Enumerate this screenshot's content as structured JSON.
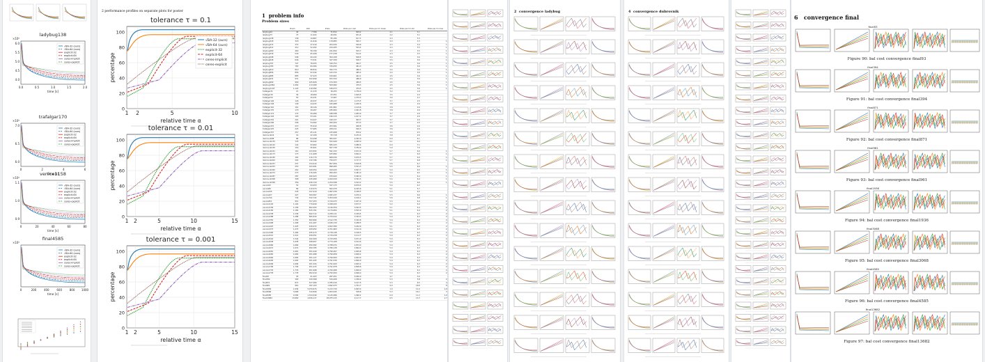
{
  "page1": {
    "plots": [
      {
        "title": "ladybug138",
        "exp_label": "×10⁶",
        "y_ticks": [
          "6.0",
          "5.5",
          "5.0",
          "4.5",
          "4.0"
        ],
        "x_ticks": [
          "0.0",
          "0.5",
          "1.0",
          "1.5",
          "2.0"
        ],
        "xlabel": "time [s]"
      },
      {
        "title": "trafalgar170",
        "exp_label": "×10⁶",
        "y_ticks": [
          "7.0",
          "6.5",
          "6.0"
        ],
        "x_ticks": [
          "0",
          "2",
          "4",
          "6"
        ],
        "xlabel": "time [s]"
      },
      {
        "title": "venice1158",
        "exp_label": "×10⁶",
        "y_ticks": [
          "1.1",
          "1.0",
          "0.9"
        ],
        "x_ticks": [
          "0",
          "20",
          "40",
          "60",
          "80"
        ],
        "xlabel": "time [s]"
      },
      {
        "title": "final4585",
        "exp_label": "×10⁶",
        "y_ticks": [],
        "x_ticks": [
          "0",
          "200",
          "400",
          "600",
          "800",
          "1000"
        ],
        "xlabel": "time [s]"
      }
    ],
    "legend": [
      "√BA-32 (ours)",
      "√BA-64 (ours)",
      "explicit-32",
      "explicit-64",
      "ceres-implicit",
      "ceres-explicit"
    ],
    "legend_colors": [
      "#1f77b4",
      "#1f77b4",
      "#d62728",
      "#d62728",
      "#9467bd",
      "#2ca02c"
    ]
  },
  "page2": {
    "section": "2   performance profiles on separate plots for poster",
    "charts": [
      {
        "title": "tolerance τ = 0.1",
        "x_ticks": [
          "1",
          "2",
          "5",
          "10"
        ],
        "xlabel": "relative time α",
        "ylabel": "percentage",
        "y_ticks": [
          "0",
          "20",
          "40",
          "60",
          "80",
          "100"
        ]
      },
      {
        "title": "tolerance τ = 0.01",
        "x_ticks": [
          "1",
          "2",
          "5",
          "10",
          "15"
        ],
        "xlabel": "relative time α",
        "ylabel": "percentage",
        "y_ticks": [
          "0",
          "20",
          "40",
          "60",
          "80",
          "100"
        ]
      },
      {
        "title": "tolerance τ = 0.001",
        "x_ticks": [
          "1",
          "2",
          "5",
          "10",
          "15"
        ],
        "xlabel": "relative time α",
        "ylabel": "percentage",
        "y_ticks": [
          "0",
          "20",
          "40",
          "60",
          "80",
          "100"
        ]
      }
    ],
    "legend": [
      "√BA-32 (ours)",
      "√BA-64 (ours)",
      "explicit-32",
      "explicit-64",
      "ceres-implicit",
      "ceres-explicit"
    ]
  },
  "page3": {
    "section_num": "1",
    "section": "problem info",
    "subsection": "Problem sizes",
    "columns": [
      "",
      "#cam",
      "#lm",
      "#obs",
      "#obs per cam",
      "#obs per lm mean",
      "#obs per lm std",
      "#obs per lm max"
    ],
    "rows": [
      [
        "ladybug49",
        "49",
        "7,766",
        "31,812",
        "649.2",
        "4.1",
        "3.1",
        "46"
      ],
      [
        "ladybug73",
        "73",
        "11,022",
        "46,091",
        "631.4",
        "4.2",
        "3.1",
        "48"
      ],
      [
        "ladybug138",
        "138",
        "19,867",
        "85,184",
        "617.3",
        "4.3",
        "3.3",
        "57"
      ],
      [
        "ladybug318",
        "318",
        "41,616",
        "179,883",
        "565.7",
        "4.3",
        "3.3",
        "107"
      ],
      [
        "ladybug372",
        "372",
        "47,410",
        "204,434",
        "549.6",
        "4.3",
        "3.4",
        "113"
      ],
      [
        "ladybug412",
        "412",
        "52,202",
        "224,205",
        "544.2",
        "4.3",
        "3.5",
        "132"
      ],
      [
        "ladybug460",
        "460",
        "56,799",
        "241,842",
        "525.7",
        "4.3",
        "3.5",
        "132"
      ],
      [
        "ladybug539",
        "539",
        "65,208",
        "277,238",
        "514.4",
        "4.3",
        "3.5",
        "132"
      ],
      [
        "ladybug598",
        "598",
        "69,193",
        "304,108",
        "508.5",
        "4.4",
        "3.6",
        "132"
      ],
      [
        "ladybug646",
        "646",
        "73,541",
        "327,299",
        "506.7",
        "4.5",
        "3.6",
        "132"
      ],
      [
        "ladybug707",
        "707",
        "78,455",
        "349,753",
        "494.7",
        "4.5",
        "3.6",
        "132"
      ],
      [
        "ladybug783",
        "783",
        "84,384",
        "376,835",
        "481.3",
        "4.5",
        "3.6",
        "132"
      ],
      [
        "ladybug810",
        "810",
        "88,814",
        "393,774",
        "486.1",
        "4.4",
        "3.6",
        "132"
      ],
      [
        "ladybug856",
        "856",
        "93,344",
        "415,315",
        "485.2",
        "4.4",
        "3.6",
        "132"
      ],
      [
        "ladybug885",
        "885",
        "97,423",
        "434,601",
        "491.1",
        "4.5",
        "3.6",
        "132"
      ],
      [
        "ladybug931",
        "931",
        "102,699",
        "453,324",
        "486.9",
        "4.4",
        "3.6",
        "132"
      ],
      [
        "ladybug969",
        "969",
        "105,826",
        "474,300",
        "489.5",
        "4.5",
        "3.6",
        "132"
      ],
      [
        "ladybug1064",
        "1,064",
        "113,289",
        "509,982",
        "479.3",
        "4.5",
        "3.6",
        "132"
      ],
      [
        "ladybug1118",
        "1,118",
        "118,384",
        "536,073",
        "479.5",
        "4.5",
        "3.6",
        "132"
      ],
      [
        "trafalgar21",
        "21",
        "11,315",
        "36,455",
        "1,736.0",
        "3.2",
        "1.6",
        "15"
      ],
      [
        "trafalgar39",
        "39",
        "18,060",
        "63,551",
        "1,629.5",
        "3.5",
        "2.0",
        "20"
      ],
      [
        "trafalgar50",
        "50",
        "20,431",
        "73,967",
        "1,479.3",
        "3.6",
        "2.2",
        "21"
      ],
      [
        "trafalgar126",
        "126",
        "40,037",
        "148,117",
        "1,175.5",
        "3.7",
        "2.5",
        "29"
      ],
      [
        "trafalgar138",
        "138",
        "44,033",
        "165,688",
        "1,200.6",
        "3.8",
        "2.6",
        "32"
      ],
      [
        "trafalgar161",
        "161",
        "48,126",
        "181,861",
        "1,129.6",
        "3.8",
        "2.6",
        "40"
      ],
      [
        "trafalgar170",
        "170",
        "49,267",
        "185,604",
        "1,091.8",
        "3.8",
        "2.6",
        "41"
      ],
      [
        "trafalgar174",
        "174",
        "50,489",
        "188,598",
        "1,083.9",
        "3.7",
        "2.6",
        "41"
      ],
      [
        "trafalgar193",
        "193",
        "53,101",
        "196,315",
        "1,017.2",
        "3.7",
        "2.6",
        "42"
      ],
      [
        "trafalgar201",
        "201",
        "54,427",
        "199,727",
        "993.7",
        "3.7",
        "2.6",
        "42"
      ],
      [
        "trafalgar206",
        "206",
        "54,562",
        "200,504",
        "973.3",
        "3.7",
        "2.6",
        "42"
      ],
      [
        "trafalgar215",
        "215",
        "55,910",
        "203,991",
        "948.8",
        "3.6",
        "2.6",
        "42"
      ],
      [
        "trafalgar225",
        "225",
        "57,665",
        "208,411",
        "926.3",
        "3.6",
        "2.6",
        "42"
      ],
      [
        "trafalgar257",
        "257",
        "65,131",
        "225,698",
        "878.2",
        "3.5",
        "2.5",
        "44"
      ],
      [
        "dubrovnik16",
        "16",
        "22,106",
        "83,718",
        "5,232.4",
        "3.8",
        "2.6",
        "14"
      ],
      [
        "dubrovnik88",
        "88",
        "64,298",
        "383,937",
        "4,362.9",
        "6.0",
        "6.1",
        "60"
      ],
      [
        "dubrovnik135",
        "135",
        "90,642",
        "552,949",
        "4,095.9",
        "6.1",
        "6.9",
        "89"
      ],
      [
        "dubrovnik142",
        "142",
        "93,602",
        "565,223",
        "3,980.4",
        "6.0",
        "7.1",
        "94"
      ],
      [
        "dubrovnik150",
        "150",
        "95,821",
        "567,738",
        "3,784.9",
        "5.9",
        "7.0",
        "94"
      ],
      [
        "dubrovnik161",
        "161",
        "103,832",
        "591,343",
        "3,672.9",
        "5.7",
        "6.9",
        "102"
      ],
      [
        "dubrovnik173",
        "173",
        "111,908",
        "633,894",
        "3,664.1",
        "5.7",
        "6.9",
        "102"
      ],
      [
        "dubrovnik182",
        "182",
        "116,770",
        "668,030",
        "3,670.5",
        "5.7",
        "6.9",
        "102"
      ],
      [
        "dubrovnik202",
        "202",
        "132,796",
        "750,977",
        "3,717.7",
        "5.7",
        "6.8",
        "102"
      ],
      [
        "dubrovnik237",
        "237",
        "154,414",
        "857,656",
        "3,618.8",
        "5.6",
        "6.7",
        "98"
      ],
      [
        "dubrovnik253",
        "253",
        "163,691",
        "898,485",
        "3,551.3",
        "5.5",
        "6.6",
        "102"
      ],
      [
        "dubrovnik262",
        "262",
        "169,354",
        "919,020",
        "3,507.7",
        "5.4",
        "6.5",
        "106"
      ],
      [
        "dubrovnik273",
        "273",
        "176,305",
        "950,303",
        "3,481.0",
        "5.4",
        "6.5",
        "106"
      ],
      [
        "dubrovnik287",
        "287",
        "182,023",
        "970,624",
        "3,382.0",
        "5.3",
        "6.4",
        "122"
      ],
      [
        "dubrovnik308",
        "308",
        "195,089",
        "1,044,529",
        "3,391.3",
        "5.4",
        "6.4",
        "122"
      ],
      [
        "dubrovnik356",
        "356",
        "226,729",
        "1,254,598",
        "3,524.2",
        "5.5",
        "6.6",
        "122"
      ],
      [
        "venice52",
        "52",
        "64,053",
        "347,173",
        "6,676.4",
        "5.4",
        "6.3",
        "50"
      ],
      [
        "venice89",
        "89",
        "110,973",
        "562,976",
        "6,325.6",
        "5.1",
        "5.7",
        "62"
      ],
      [
        "venice245",
        "245",
        "197,919",
        "1,087,436",
        "4,438.5",
        "5.5",
        "6.5",
        "93"
      ],
      [
        "venice427",
        "427",
        "309,567",
        "1,695,237",
        "3,970.1",
        "5.5",
        "6.6",
        "132"
      ],
      [
        "venice744",
        "744",
        "542,742",
        "3,054,949",
        "4,106.1",
        "5.6",
        "6.8",
        "185"
      ],
      [
        "venice951",
        "951",
        "707,453",
        "3,744,975",
        "3,937.9",
        "5.3",
        "6.4",
        "211"
      ],
      [
        "venice1102",
        "1,102",
        "779,640",
        "4,048,424",
        "3,673.7",
        "5.2",
        "6.4",
        "222"
      ],
      [
        "venice1158",
        "1,158",
        "802,093",
        "4,126,550",
        "3,563.5",
        "5.1",
        "6.4",
        "222"
      ],
      [
        "venice1184",
        "1,184",
        "815,761",
        "4,174,654",
        "3,525.9",
        "5.1",
        "6.4",
        "224"
      ],
      [
        "venice1238",
        "1,238",
        "842,712",
        "4,258,111",
        "3,439.5",
        "5.1",
        "6.3",
        "224"
      ],
      [
        "venice1288",
        "1,288",
        "865,630",
        "4,370,614",
        "3,393.3",
        "5.0",
        "6.3",
        "226"
      ],
      [
        "venice1350",
        "1,350",
        "893,894",
        "4,512,735",
        "3,342.8",
        "5.0",
        "6.3",
        "226"
      ],
      [
        "venice1408",
        "1,408",
        "911,407",
        "4,630,139",
        "3,288.5",
        "5.1",
        "6.3",
        "226"
      ],
      [
        "venice1425",
        "1,425",
        "916,072",
        "4,652,589",
        "3,264.9",
        "5.1",
        "6.3",
        "226"
      ],
      [
        "venice1473",
        "1,473",
        "929,952",
        "4,701,663",
        "3,191.9",
        "5.1",
        "6.3",
        "226"
      ],
      [
        "venice1490",
        "1,490",
        "935,273",
        "4,718,148",
        "3,166.5",
        "5.0",
        "6.3",
        "226"
      ],
      [
        "venice1521",
        "1,521",
        "939,551",
        "4,734,438",
        "3,112.7",
        "5.0",
        "6.3",
        "226"
      ],
      [
        "venice1544",
        "1,544",
        "942,409",
        "4,743,056",
        "3,071.9",
        "5.0",
        "6.3",
        "226"
      ],
      [
        "venice1638",
        "1,638",
        "948,657",
        "4,774,168",
        "2,914.6",
        "5.0",
        "6.3",
        "226"
      ],
      [
        "venice1666",
        "1,666",
        "950,582",
        "4,788,074",
        "2,874.0",
        "5.0",
        "6.3",
        "226"
      ],
      [
        "venice1672",
        "1,672",
        "950,785",
        "4,789,138",
        "2,864.3",
        "5.0",
        "6.3",
        "226"
      ],
      [
        "venice1681",
        "1,681",
        "951,049",
        "4,790,467",
        "2,849.8",
        "5.0",
        "6.3",
        "226"
      ],
      [
        "venice1682",
        "1,682",
        "951,088",
        "4,790,658",
        "2,848.2",
        "5.0",
        "6.3",
        "226"
      ],
      [
        "venice1684",
        "1,684",
        "951,127",
        "4,790,829",
        "2,844.9",
        "5.0",
        "6.3",
        "226"
      ],
      [
        "venice1695",
        "1,695",
        "951,295",
        "4,791,536",
        "2,826.9",
        "5.0",
        "6.3",
        "226"
      ],
      [
        "venice1696",
        "1,696",
        "951,324",
        "4,791,620",
        "2,825.2",
        "5.0",
        "6.3",
        "226"
      ],
      [
        "venice1706",
        "1,706",
        "951,415",
        "4,791,878",
        "2,808.8",
        "5.0",
        "6.3",
        "226"
      ],
      [
        "venice1776",
        "1,776",
        "951,998",
        "4,793,468",
        "2,699.0",
        "5.0",
        "6.3",
        "226"
      ],
      [
        "venice1778",
        "1,778",
        "952,010",
        "4,793,500",
        "2,696.0",
        "5.0",
        "6.3",
        "226"
      ],
      [
        "final93",
        "93",
        "61,203",
        "287,451",
        "3,090.9",
        "4.7",
        "3.0",
        "80"
      ],
      [
        "final394",
        "394",
        "100,368",
        "534,408",
        "1,356.4",
        "5.3",
        "5.8",
        "269"
      ],
      [
        "final871",
        "871",
        "527,480",
        "2,785,016",
        "3,197.5",
        "5.3",
        "6.5",
        "445"
      ],
      [
        "final961",
        "961",
        "187,103",
        "1,692,975",
        "1,761.7",
        "9.0",
        "18.8",
        "898"
      ],
      [
        "final1936",
        "1,936",
        "5,079,674",
        "5,213,730",
        "2,693.0",
        "1.0",
        "11.0",
        "1,094"
      ],
      [
        "final3068",
        "3,068",
        "310,846",
        "1,653,045",
        "538.8",
        "5.3",
        "16.1",
        "371"
      ],
      [
        "final4585",
        "4,585",
        "1,324,549",
        "9,125,086",
        "1,990.2",
        "6.9",
        "11.2",
        "1,293"
      ],
      [
        "final13682",
        "13,682",
        "4,456,117",
        "28,975,215",
        "2,117.7",
        "6.5",
        "13.3",
        "1,748"
      ]
    ]
  },
  "page4": {
    "section_num": "2",
    "section": "convergence ladybug"
  },
  "page5": {
    "section_num": "4",
    "section": "convergence dubrovnik"
  },
  "page6": {
    "section_num": "6",
    "section": "convergence final"
  },
  "page6_figs": [
    {
      "title": "final93",
      "caption": "Figure 90: bal cost convergence final93"
    },
    {
      "title": "final394",
      "caption": "Figure 91: bal cost convergence final394"
    },
    {
      "title": "final871",
      "caption": "Figure 92: bal cost convergence final871"
    },
    {
      "title": "final961",
      "caption": "Figure 93: bal cost convergence final961"
    },
    {
      "title": "final1936",
      "caption": "Figure 94: bal cost convergence final1936"
    },
    {
      "title": "final3068",
      "caption": "Figure 95: bal cost convergence final3068"
    },
    {
      "title": "final4585",
      "caption": "Figure 96: bal cost convergence final4585"
    },
    {
      "title": "final13682",
      "caption": "Figure 97: bal cost convergence final13682"
    }
  ],
  "colors": {
    "blue": "#1f77b4",
    "orange": "#ff7f0e",
    "green": "#2ca02c",
    "red": "#d62728",
    "purple": "#9467bd",
    "brown": "#8c564b"
  }
}
